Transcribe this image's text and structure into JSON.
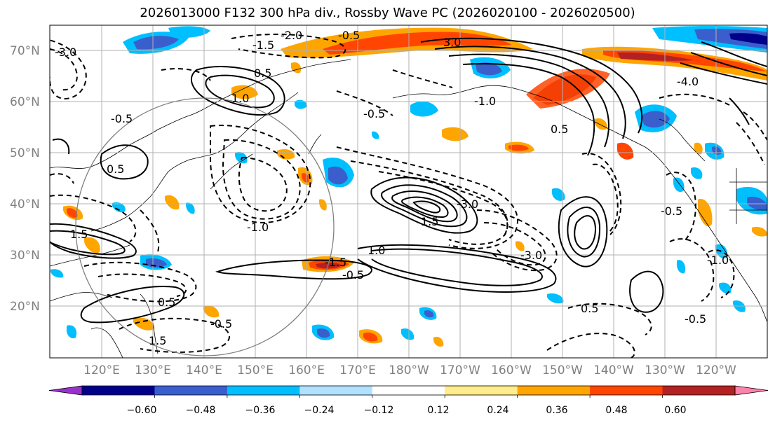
{
  "figure": {
    "title": "2026013000 F132 300 hPa div., Rossby Wave PC (2026020100 - 2026020500)"
  },
  "map": {
    "lat_ticks": [
      "70°N",
      "60°N",
      "50°N",
      "40°N",
      "30°N",
      "20°N"
    ],
    "lon_ticks": [
      "120°E",
      "130°E",
      "140°E",
      "150°E",
      "160°E",
      "170°E",
      "180°W",
      "170°W",
      "160°W",
      "150°W",
      "140°W",
      "130°W",
      "120°W"
    ],
    "contour_labels": [
      "-2.0",
      "-0.5",
      "-1.5",
      "-3.0",
      "3.0",
      "-4.0",
      "0.5",
      "-1.0",
      "1.0",
      "-0.5",
      "0.5",
      "1.5",
      "-3.0",
      "0.5",
      "-0.5",
      "-1.0",
      "1.5",
      "1.0",
      "-1.5",
      "-3.0",
      "1.5",
      "0.5",
      "-0.5",
      "0.5",
      "-0.5",
      "-1.0",
      "-0.5",
      "-0.5"
    ]
  },
  "colorbar": {
    "tick_labels": [
      "−0.60",
      "−0.48",
      "−0.36",
      "−0.24",
      "−0.12",
      "0.12",
      "0.24",
      "0.36",
      "0.48",
      "0.60"
    ],
    "colors": [
      "#9932cc",
      "#00008b",
      "#3a5fcd",
      "#00bfff",
      "#b0e2ff",
      "#ffffff",
      "#ffec8b",
      "#ffa500",
      "#ff4500",
      "#b22222",
      "#ff82ab"
    ]
  }
}
